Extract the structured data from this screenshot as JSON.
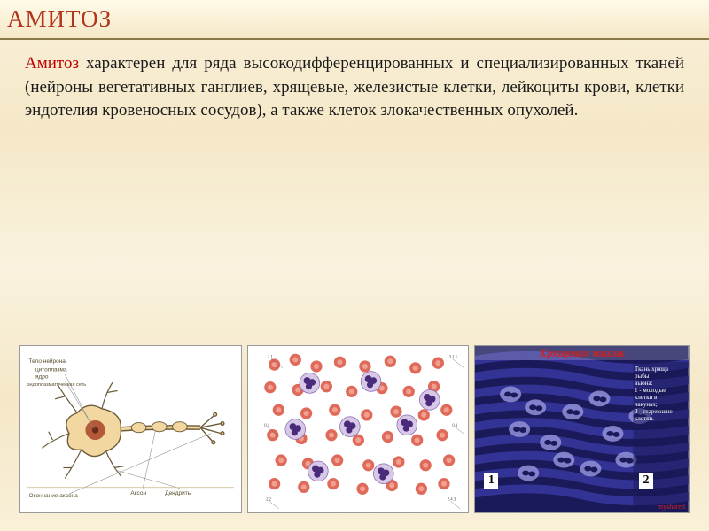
{
  "title": "АМИТОЗ",
  "paragraph": {
    "red_word": "Амитоз",
    "rest": " характерен для ряда высокодифференцированных и специализированных тканей (нейроны вегетативных ганглиев, хрящевые, железистые клетки, лейкоциты крови, клетки эндотелия кровеносных сосудов), а также клеток злокачественных опухолей."
  },
  "fig1": {
    "labels": {
      "body": "Тело нейрона:",
      "cyto": "цитоплазма",
      "nucleus": "ядро",
      "er": "эндоплазматическая сеть",
      "axon": "Аксон",
      "dendrites": "Дендриты",
      "ending": "Окончание аксона"
    },
    "colors": {
      "neuron_fill": "#f3d7a0",
      "nucleus": "#b35a3a",
      "line": "#6b5a39",
      "text": "#5a4a2a"
    }
  },
  "fig2": {
    "rbc_color": "#e06a5a",
    "rbc_inner": "#f0a090",
    "wbc_nucleus": "#4a2a7a",
    "wbc_cyto": "#d8c8e8",
    "rbc_count": 60,
    "wbc_count": 8
  },
  "fig3": {
    "title": "Хрящевая ткань",
    "caption_lines": [
      "Ткань хряща",
      "рыбы",
      "вьюна:",
      "1 - молодые",
      "клетки в",
      "лакунах;",
      "2 - стареющие",
      "клетки."
    ],
    "num1": "1",
    "num2": "2",
    "bg_dark": "#1a1a5a",
    "bg_mid": "#3838a0",
    "lacuna": "#9090d8",
    "watermark": "myshared"
  }
}
